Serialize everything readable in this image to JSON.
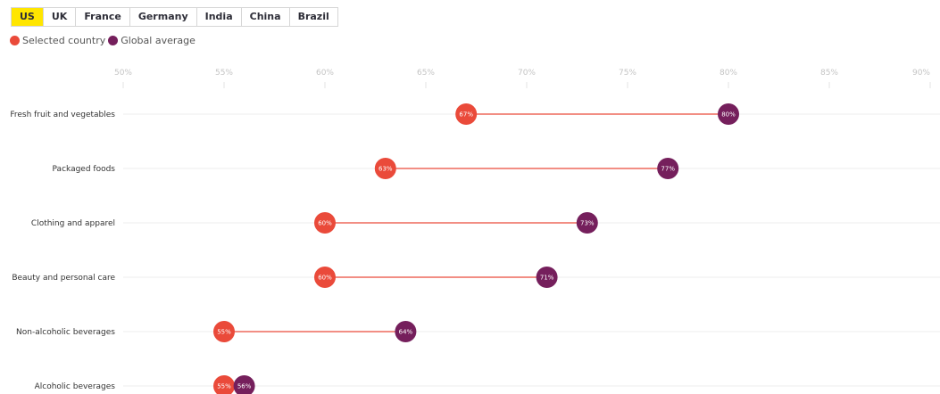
{
  "tabs": [
    {
      "label": "US",
      "active": true
    },
    {
      "label": "UK",
      "active": false
    },
    {
      "label": "France",
      "active": false
    },
    {
      "label": "Germany",
      "active": false
    },
    {
      "label": "India",
      "active": false
    },
    {
      "label": "China",
      "active": false
    },
    {
      "label": "Brazil",
      "active": false
    }
  ],
  "legend": [
    {
      "label": "Selected country",
      "color": "#ea4a3a"
    },
    {
      "label": "Global average",
      "color": "#751f5c"
    }
  ],
  "chart_data": {
    "type": "dumbbell",
    "xlim": [
      50,
      90
    ],
    "xticks": [
      50,
      55,
      60,
      65,
      70,
      75,
      80,
      85,
      90
    ],
    "tick_suffix": "%",
    "legend_position": "top-left",
    "grid": true,
    "categories": [
      "Fresh fruit and vegetables",
      "Packaged foods",
      "Clothing and apparel",
      "Beauty and personal care",
      "Non-alcoholic beverages",
      "Alcoholic beverages"
    ],
    "series": [
      {
        "name": "Selected country",
        "color": "#ea4a3a",
        "values": [
          67,
          63,
          60,
          60,
          55,
          55
        ]
      },
      {
        "name": "Global average",
        "color": "#751f5c",
        "values": [
          80,
          77,
          73,
          71,
          64,
          56
        ]
      }
    ]
  }
}
